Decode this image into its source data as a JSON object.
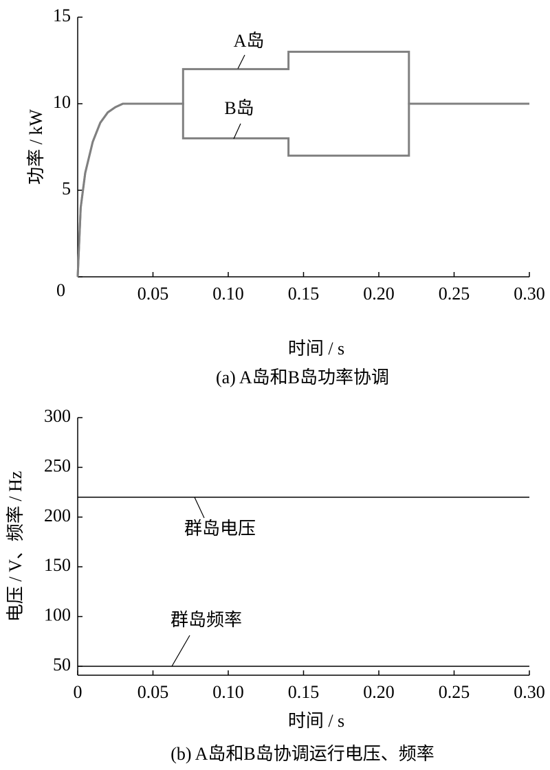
{
  "chart_data": [
    {
      "type": "line",
      "ylabel": "功率 / kW",
      "xlabel": "时间 / s",
      "caption": "(a)  A岛和B岛功率协调",
      "xlim": [
        0,
        0.3
      ],
      "xticks": [
        0.05,
        {
          "value": 0.1,
          "label": "0.10"
        },
        0.15,
        {
          "value": 0.2,
          "label": "0.20"
        },
        0.25,
        {
          "value": 0.3,
          "label": "0.30"
        }
      ],
      "ylim": [
        0,
        15
      ],
      "yticks": [
        0,
        5,
        10,
        15
      ],
      "x": [
        0,
        0.002,
        0.005,
        0.01,
        0.015,
        0.02,
        0.025,
        0.03,
        0.07,
        0.07,
        0.14,
        0.14,
        0.22,
        0.22,
        0.3
      ],
      "series": [
        {
          "name": "A岛",
          "color": "#808080",
          "values": [
            0,
            4,
            6,
            7.8,
            8.9,
            9.5,
            9.8,
            10,
            10,
            12,
            12,
            13,
            13,
            10,
            10
          ]
        },
        {
          "name": "B岛",
          "color": "#808080",
          "values": [
            0,
            4,
            6,
            7.8,
            8.9,
            9.5,
            9.8,
            10,
            10,
            8,
            8,
            7,
            7,
            10,
            10
          ]
        }
      ]
    },
    {
      "type": "line",
      "ylabel": "电压 / V、频率 / Hz",
      "xlabel": "时间 / s",
      "caption": "(b)  A岛和B岛协调运行电压、频率",
      "xlim": [
        0,
        0.3
      ],
      "xticks": [
        0,
        0.05,
        {
          "value": 0.1,
          "label": "0.10"
        },
        0.15,
        {
          "value": 0.2,
          "label": "0.20"
        },
        0.25,
        {
          "value": 0.3,
          "label": "0.30"
        }
      ],
      "ylim": [
        41,
        300
      ],
      "yticks": [
        50,
        100,
        150,
        200,
        250,
        300
      ],
      "x": [
        0,
        0.3
      ],
      "series": [
        {
          "name": "群岛电压",
          "color": "#000000",
          "values": [
            220,
            220
          ]
        },
        {
          "name": "群岛频率",
          "color": "#000000",
          "values": [
            50,
            50
          ]
        }
      ]
    }
  ]
}
